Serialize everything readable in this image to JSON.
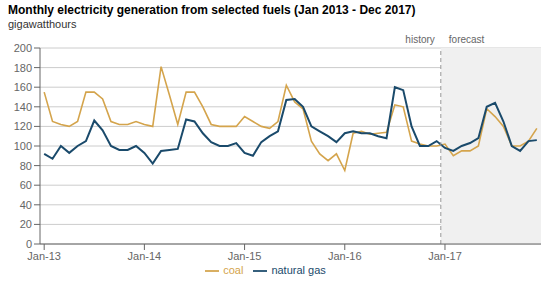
{
  "chart_data": {
    "type": "line",
    "title": "Monthly electricity generation from selected fuels (Jan 2013 - Dec 2017)",
    "y_label": "gigawatthours",
    "categories": [
      "Jan-13",
      null,
      null,
      null,
      null,
      null,
      null,
      null,
      null,
      null,
      null,
      null,
      "Jan-14",
      null,
      null,
      null,
      null,
      null,
      null,
      null,
      null,
      null,
      null,
      null,
      "Jan-15",
      null,
      null,
      null,
      null,
      null,
      null,
      null,
      null,
      null,
      null,
      null,
      "Jan-16",
      null,
      null,
      null,
      null,
      null,
      null,
      null,
      null,
      null,
      null,
      null,
      "Jan-17",
      null,
      null,
      null,
      null,
      null,
      null,
      null,
      null,
      null,
      null,
      null
    ],
    "series": [
      {
        "name": "coal",
        "color": "#d4a44c",
        "values": [
          155,
          125,
          122,
          120,
          125,
          155,
          155,
          148,
          125,
          122,
          122,
          125,
          122,
          120,
          181,
          152,
          122,
          155,
          155,
          140,
          122,
          120,
          120,
          120,
          130,
          125,
          120,
          118,
          125,
          162,
          145,
          138,
          105,
          92,
          85,
          92,
          75,
          113,
          115,
          112,
          113,
          114,
          142,
          140,
          105,
          102,
          100,
          100,
          102,
          90,
          95,
          95,
          100,
          138,
          130,
          120,
          100,
          100,
          105,
          118
        ]
      },
      {
        "name": "natural gas",
        "color": "#1a4a6b",
        "values": [
          92,
          87,
          100,
          93,
          100,
          105,
          126,
          116,
          100,
          96,
          96,
          100,
          93,
          82,
          95,
          96,
          97,
          127,
          125,
          113,
          104,
          100,
          100,
          103,
          93,
          90,
          104,
          110,
          115,
          147,
          148,
          140,
          120,
          115,
          110,
          104,
          113,
          115,
          113,
          113,
          110,
          108,
          160,
          157,
          120,
          100,
          100,
          105,
          98,
          95,
          100,
          103,
          108,
          140,
          144,
          125,
          100,
          95,
          105,
          106
        ]
      }
    ],
    "ylim": [
      0,
      200
    ],
    "yticks": [
      0,
      20,
      40,
      60,
      80,
      100,
      120,
      140,
      160,
      180,
      200
    ],
    "grid": true,
    "legend": "bottom",
    "annotations": [
      {
        "text": "history",
        "x": "Jan-17",
        "color": "#666666"
      },
      {
        "text": "forecast",
        "x": "Jan-17",
        "color": "#666666"
      }
    ]
  }
}
